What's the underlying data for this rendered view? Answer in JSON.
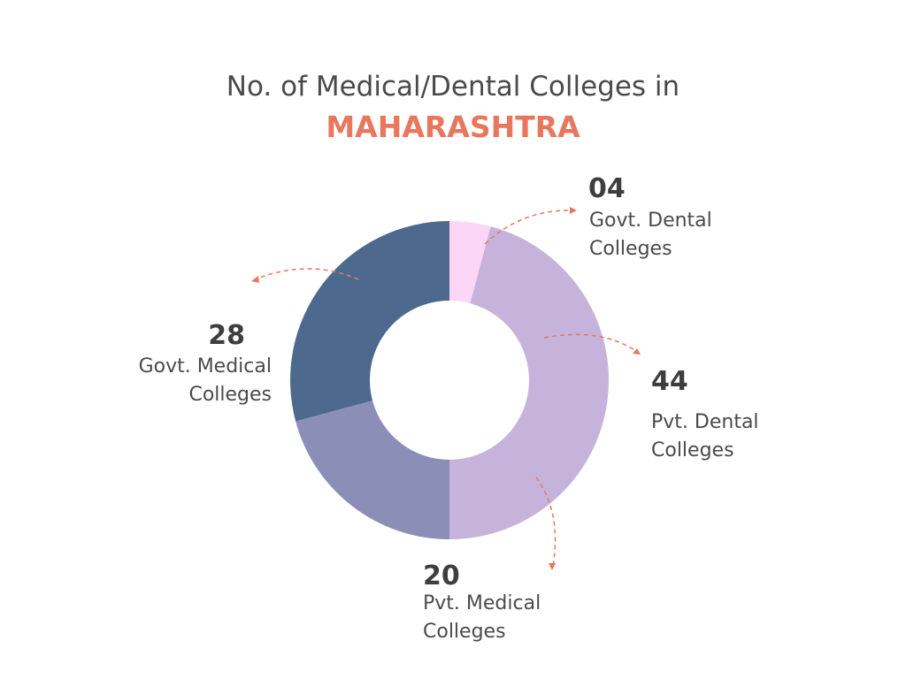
{
  "chart_data": {
    "type": "pie",
    "title": "No. of Medical/Dental Colleges in",
    "subtitle": "MAHARASHTRA",
    "categories": [
      "Govt. Dental Colleges",
      "Pvt. Dental Colleges",
      "Pvt. Medical Colleges",
      "Govt. Medical Colleges"
    ],
    "values": [
      4,
      44,
      20,
      28
    ],
    "value_labels": [
      "04",
      "44",
      "20",
      "28"
    ],
    "colors": [
      "#fdd5f7",
      "#c5b3dc",
      "#8b8fb8",
      "#4d6a8e"
    ],
    "hole": true
  }
}
